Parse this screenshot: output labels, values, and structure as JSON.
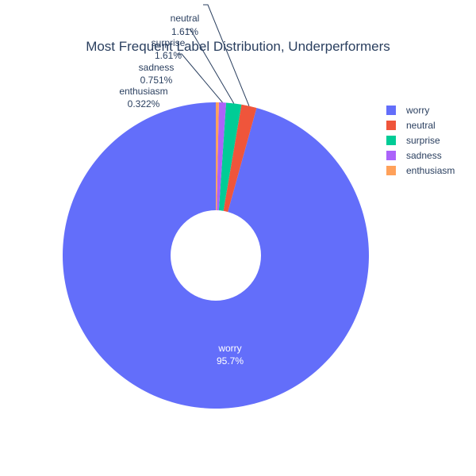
{
  "chart_data": {
    "type": "pie",
    "title": "Most Frequent Label Distribution, Underperformers",
    "hole": true,
    "legend_position": "top-right",
    "slices": [
      {
        "label": "worry",
        "percent": 95.7,
        "percent_text": "95.7%",
        "color": "#636efa"
      },
      {
        "label": "neutral",
        "percent": 1.61,
        "percent_text": "1.61%",
        "color": "#ef553b"
      },
      {
        "label": "surprise",
        "percent": 1.61,
        "percent_text": "1.61%",
        "color": "#00cc96"
      },
      {
        "label": "sadness",
        "percent": 0.751,
        "percent_text": "0.751%",
        "color": "#ab63fa"
      },
      {
        "label": "enthusiasm",
        "percent": 0.322,
        "percent_text": "0.322%",
        "color": "#ffa15a"
      }
    ]
  }
}
